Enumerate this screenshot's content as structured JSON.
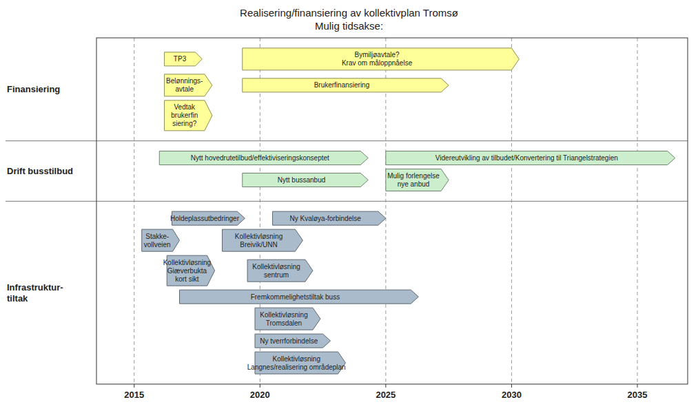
{
  "chart_data": {
    "type": "gantt",
    "title": "Realisering/finansiering av kollektivplan Tromsø\nMulig tidsakse:",
    "xlim": [
      2013.5,
      2037
    ],
    "xticks": [
      2015,
      2020,
      2025,
      2030,
      2035
    ],
    "grid": true,
    "series": [
      {
        "name": "Finansiering",
        "color": "#FFFF99",
        "labels": [
          "TP3",
          "Belønnings-\navtale",
          "Vedtak\nbrukerfin\nsiering?",
          "Bymiljøavtale?\nKrav om måloppnåelse",
          "Brukerfinansiering"
        ],
        "start": [
          2016.2,
          2016.2,
          2016.2,
          2019.3,
          2019.3
        ],
        "duration": [
          1.5,
          1.9,
          1.9,
          11.0,
          8.2
        ]
      },
      {
        "name": "Drift busstilbud",
        "color": "#CCEECC",
        "labels": [
          "Nytt hovedrutetilbud/effektiviseringskonseptet",
          "Videreutvikling av tilbudet/Konvertering til Triangelstrategien",
          "Nytt bussanbud",
          "Mulig forlengelse\nnye anbud"
        ],
        "start": [
          2016.0,
          2025.0,
          2019.3,
          2025.0
        ],
        "duration": [
          8.3,
          11.5,
          5.0,
          2.5
        ]
      },
      {
        "name": "Infrastruktur-\ntiltak",
        "color": "#AABCCC",
        "labels": [
          "Ny Kvaløya-forbindelse",
          "Kollektivløsning\nBreivik/UNN",
          "Kollektivløsning\nsentrum",
          "Fremkommelighetstiltak buss",
          "Holdeplassutbedringer",
          "Stakke-\nvollveien",
          "Kollektivløsning\nGiæverbukta\nkort sikt",
          "Kollektivløsning\nTromsdalen",
          "Ny tverrforbindelse",
          "Kollektivløsning\nLangnes/realisering områdeplan"
        ],
        "start": [
          2020.5,
          2018.5,
          2019.5,
          2016.8,
          2016.5,
          2015.3,
          2016.3,
          2019.8,
          2019.8,
          2019.8
        ],
        "duration": [
          4.5,
          3.2,
          2.6,
          9.5,
          2.9,
          1.5,
          1.9,
          2.6,
          3.0,
          3.6
        ]
      }
    ]
  }
}
